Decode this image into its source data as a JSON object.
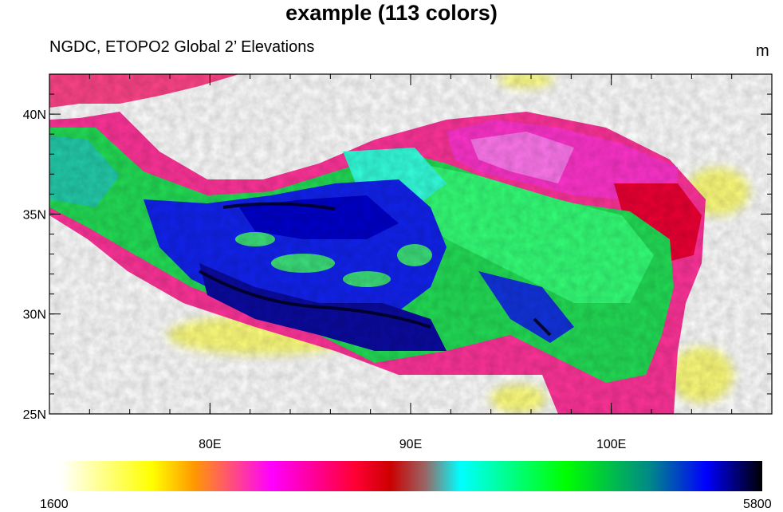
{
  "plot": {
    "title": "example (113 colors)",
    "left_string": "NGDC, ETOPO2 Global 2’ Elevations",
    "units": "m"
  },
  "map": {
    "lon_range": [
      72,
      108
    ],
    "lat_range": [
      25,
      42
    ],
    "lon_ticks": [
      {
        "value": 80,
        "label": "80E"
      },
      {
        "value": 90,
        "label": "90E"
      },
      {
        "value": 100,
        "label": "100E"
      }
    ],
    "lat_ticks": [
      {
        "value": 40,
        "label": "40N"
      },
      {
        "value": 35,
        "label": "35N"
      },
      {
        "value": 30,
        "label": "30N"
      },
      {
        "value": 25,
        "label": "25N"
      }
    ]
  },
  "colorbar": {
    "min_label": "1600",
    "max_label": "5800",
    "n_colors": 113,
    "color_stops": [
      "#ffffff",
      "#ffff00",
      "#ff9900",
      "#ff00ff",
      "#ff0033",
      "#cc0000",
      "#00ffff",
      "#00ff00",
      "#0000ff",
      "#000000"
    ]
  },
  "chart_data": {
    "type": "heatmap",
    "title": "example (113 colors)",
    "subtitle": "NGDC, ETOPO2 Global 2’ Elevations",
    "units": "m",
    "xlim": [
      72,
      108
    ],
    "ylim": [
      25,
      42
    ],
    "x_tick_labels": [
      "80E",
      "90E",
      "100E"
    ],
    "y_tick_labels": [
      "40N",
      "35N",
      "30N",
      "25N"
    ],
    "color_range": [
      1600,
      5800
    ],
    "n_colors": 113
  }
}
